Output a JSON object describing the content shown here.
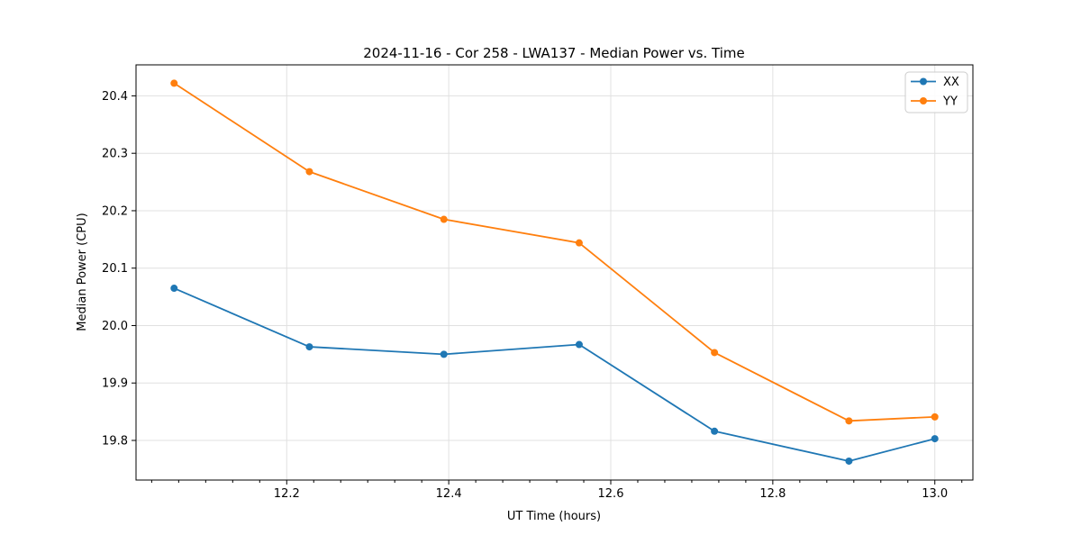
{
  "chart_data": {
    "type": "line",
    "title": "2024-11-16 - Cor 258 - LWA137 - Median Power vs. Time",
    "xlabel": "UT Time (hours)",
    "ylabel": "Median Power (CPU)",
    "x": [
      12.061,
      12.228,
      12.394,
      12.561,
      12.728,
      12.894,
      13.0
    ],
    "series": [
      {
        "name": "XX",
        "color": "#1f77b4",
        "values": [
          20.065,
          19.963,
          19.95,
          19.967,
          19.816,
          19.764,
          19.803
        ]
      },
      {
        "name": "YY",
        "color": "#ff7f0e",
        "values": [
          20.422,
          20.268,
          20.185,
          20.144,
          19.953,
          19.834,
          19.841
        ]
      }
    ],
    "xlim": [
      12.014,
      13.047
    ],
    "ylim": [
      19.731,
      20.454
    ],
    "xticks": [
      12.2,
      12.4,
      12.6,
      12.8,
      13.0
    ],
    "xtick_labels": [
      "12.2",
      "12.4",
      "12.6",
      "12.8",
      "13.0"
    ],
    "yticks": [
      19.8,
      19.9,
      20.0,
      20.1,
      20.2,
      20.3,
      20.4
    ],
    "ytick_labels": [
      "19.8",
      "19.9",
      "20.0",
      "20.1",
      "20.2",
      "20.3",
      "20.4"
    ],
    "x_minor_per_major": 6,
    "grid": true,
    "legend": {
      "position": "upper right",
      "labels": [
        "XX",
        "YY"
      ]
    },
    "colors": {
      "grid": "#e0e0e0",
      "spine": "#000000",
      "background": "#ffffff",
      "legend_border": "#cccccc"
    }
  }
}
